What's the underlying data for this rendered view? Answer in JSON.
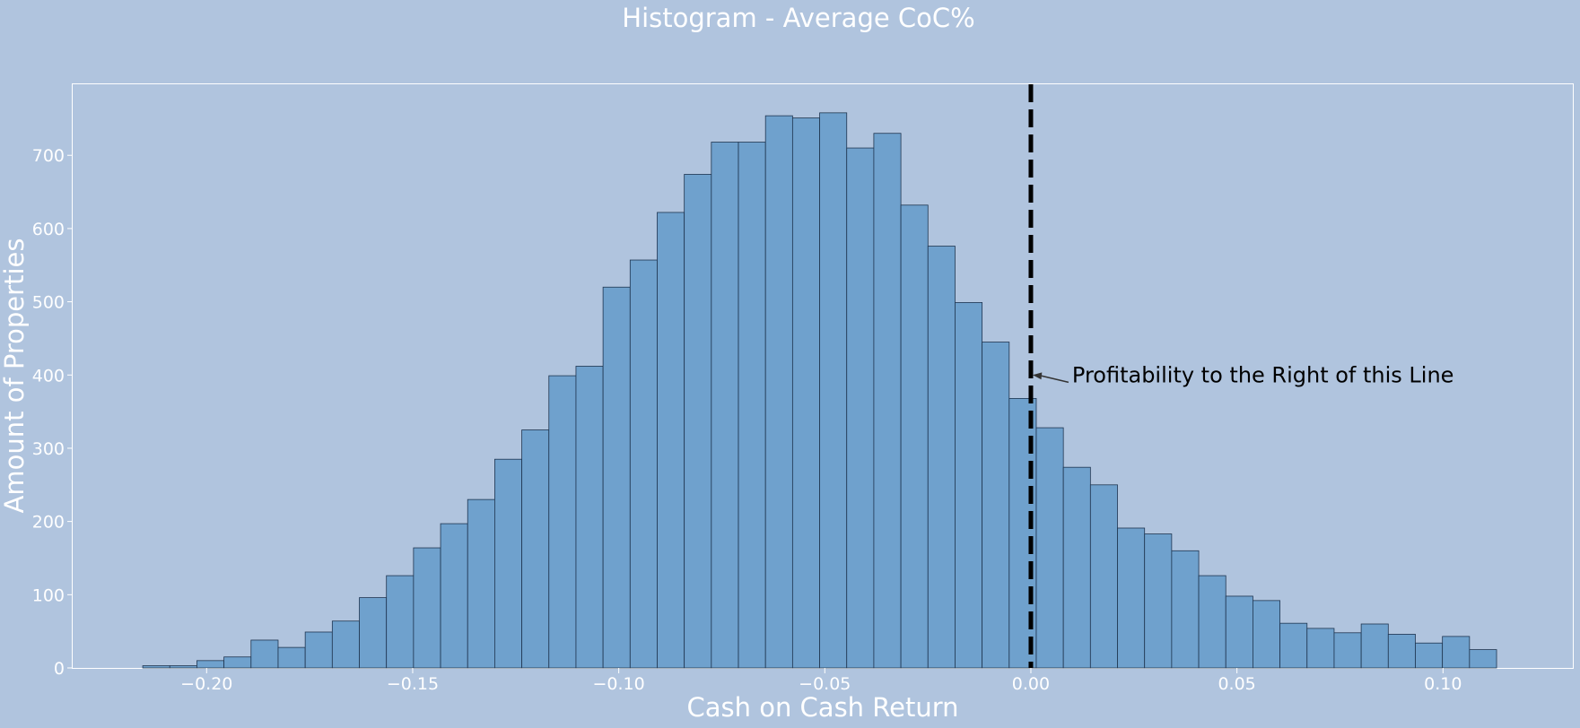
{
  "chart_data": {
    "type": "bar",
    "title": "Histogram - Average CoC%",
    "xlabel": "Cash on Cash Return",
    "ylabel": "Amount of Properties",
    "xlim": [
      -0.2325,
      0.1315
    ],
    "ylim": [
      0,
      797
    ],
    "x_ticks": [
      -0.2,
      -0.15,
      -0.1,
      -0.05,
      0.0,
      0.05,
      0.1
    ],
    "x_tick_labels": [
      "−0.20",
      "−0.15",
      "−0.10",
      "−0.05",
      "0.00",
      "0.05",
      "0.10"
    ],
    "y_ticks": [
      0,
      100,
      200,
      300,
      400,
      500,
      600,
      700
    ],
    "y_tick_labels": [
      "0",
      "100",
      "200",
      "300",
      "400",
      "500",
      "600",
      "700"
    ],
    "bin_start": -0.2155,
    "bin_width": 0.00657,
    "values": [
      3,
      3,
      10,
      15,
      38,
      28,
      49,
      64,
      96,
      126,
      164,
      197,
      230,
      285,
      325,
      399,
      412,
      520,
      557,
      622,
      674,
      718,
      718,
      754,
      751,
      758,
      710,
      730,
      632,
      576,
      499,
      445,
      368,
      328,
      274,
      250,
      191,
      183,
      160,
      126,
      98,
      92,
      61,
      54,
      48,
      60,
      46,
      34,
      43,
      25
    ],
    "bar_color": "#6fa1cd",
    "bar_edge_color": "#1f3550",
    "background_color": "#b0c4de",
    "vline": {
      "x": 0.0,
      "style": "dashed",
      "color": "#000000"
    },
    "annotation": {
      "text": "Profitability to the Right of this Line",
      "point": [
        0.0,
        400
      ],
      "text_at": [
        0.01,
        395
      ]
    },
    "grid": false
  }
}
